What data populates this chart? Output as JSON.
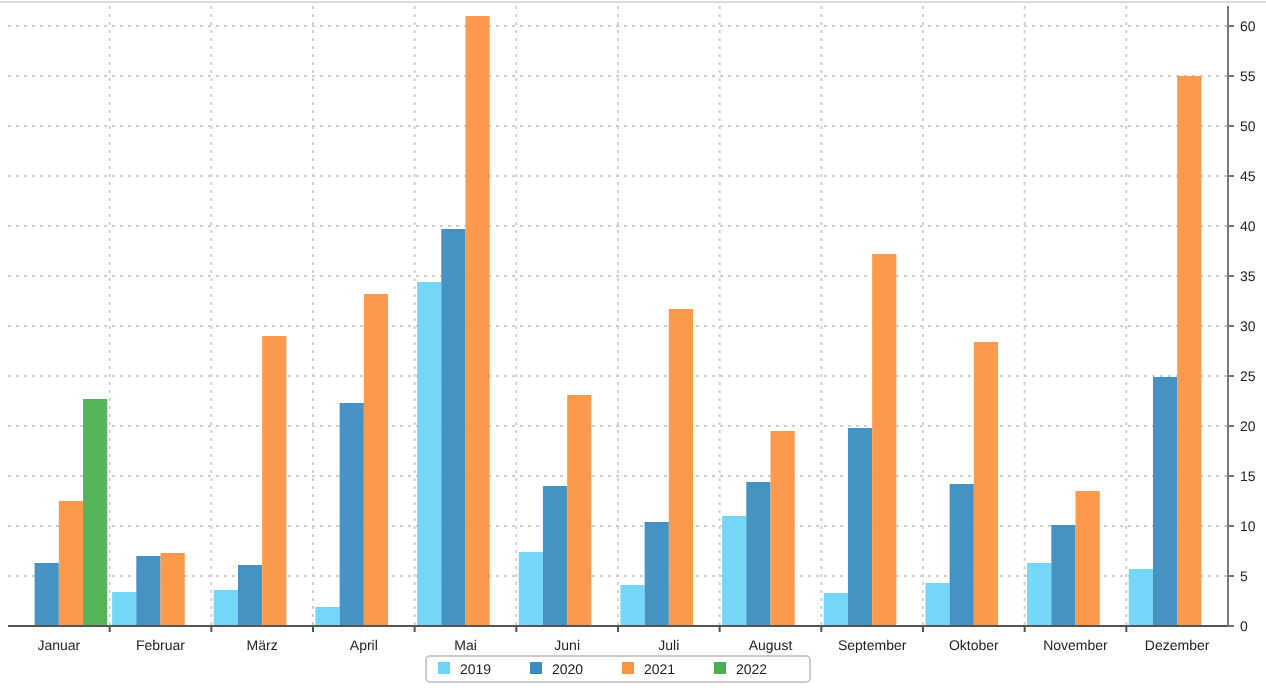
{
  "chart_data": {
    "type": "bar",
    "categories": [
      "Januar",
      "Februar",
      "März",
      "April",
      "Mai",
      "Juni",
      "Juli",
      "August",
      "September",
      "Oktober",
      "November",
      "Dezember"
    ],
    "series": [
      {
        "name": "2019",
        "color": "#6dd5f8",
        "values": [
          null,
          3.4,
          3.6,
          1.9,
          34.4,
          7.4,
          4.1,
          11.0,
          3.3,
          4.3,
          6.3,
          5.7
        ]
      },
      {
        "name": "2020",
        "color": "#3a8dc0",
        "values": [
          6.3,
          7.0,
          6.1,
          22.3,
          39.7,
          14.0,
          10.4,
          14.4,
          19.8,
          14.2,
          10.1,
          24.9
        ]
      },
      {
        "name": "2021",
        "color": "#fd9440",
        "values": [
          12.5,
          7.3,
          29.0,
          33.2,
          61.0,
          23.1,
          31.7,
          19.5,
          37.2,
          28.4,
          13.5,
          55.0
        ]
      },
      {
        "name": "2022",
        "color": "#4caf50",
        "values": [
          22.7,
          null,
          null,
          null,
          null,
          null,
          null,
          null,
          null,
          null,
          null,
          null
        ]
      }
    ],
    "ylim": [
      0,
      62
    ],
    "yticks": [
      0,
      5,
      10,
      15,
      20,
      25,
      30,
      35,
      40,
      45,
      50,
      55,
      60
    ],
    "grid": true,
    "legend": "bottom"
  }
}
